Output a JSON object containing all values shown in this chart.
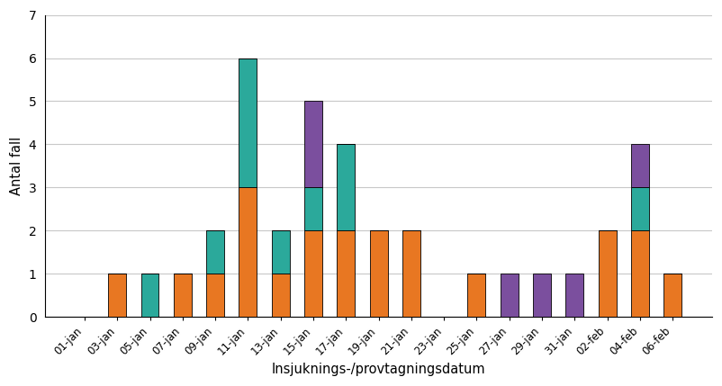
{
  "dates": [
    "01-jan",
    "03-jan",
    "05-jan",
    "07-jan",
    "09-jan",
    "11-jan",
    "13-jan",
    "15-jan",
    "17-jan",
    "19-jan",
    "21-jan",
    "23-jan",
    "25-jan",
    "27-jan",
    "29-jan",
    "31-jan",
    "02-feb",
    "04-feb",
    "06-feb"
  ],
  "orange": [
    0,
    1,
    0,
    1,
    1,
    3,
    1,
    2,
    2,
    2,
    2,
    0,
    1,
    0,
    0,
    0,
    2,
    2,
    1
  ],
  "teal": [
    0,
    0,
    1,
    0,
    1,
    3,
    1,
    1,
    2,
    0,
    0,
    0,
    0,
    0,
    0,
    0,
    0,
    1,
    0
  ],
  "purple": [
    0,
    0,
    0,
    0,
    0,
    0,
    0,
    2,
    0,
    0,
    0,
    0,
    0,
    1,
    1,
    1,
    0,
    1,
    0
  ],
  "orange2": [
    0,
    0,
    0,
    0,
    0,
    0,
    0,
    0,
    0,
    0,
    0,
    0,
    0,
    0,
    0,
    0,
    0,
    0,
    0
  ],
  "orange_color": "#E87722",
  "teal_color": "#2BA99B",
  "purple_color": "#7B4F9E",
  "ylabel": "Antal fall",
  "xlabel": "Insjuknings-/provtagningsdatum",
  "ylim": [
    0,
    7
  ],
  "yticks": [
    0,
    1,
    2,
    3,
    4,
    5,
    6,
    7
  ]
}
